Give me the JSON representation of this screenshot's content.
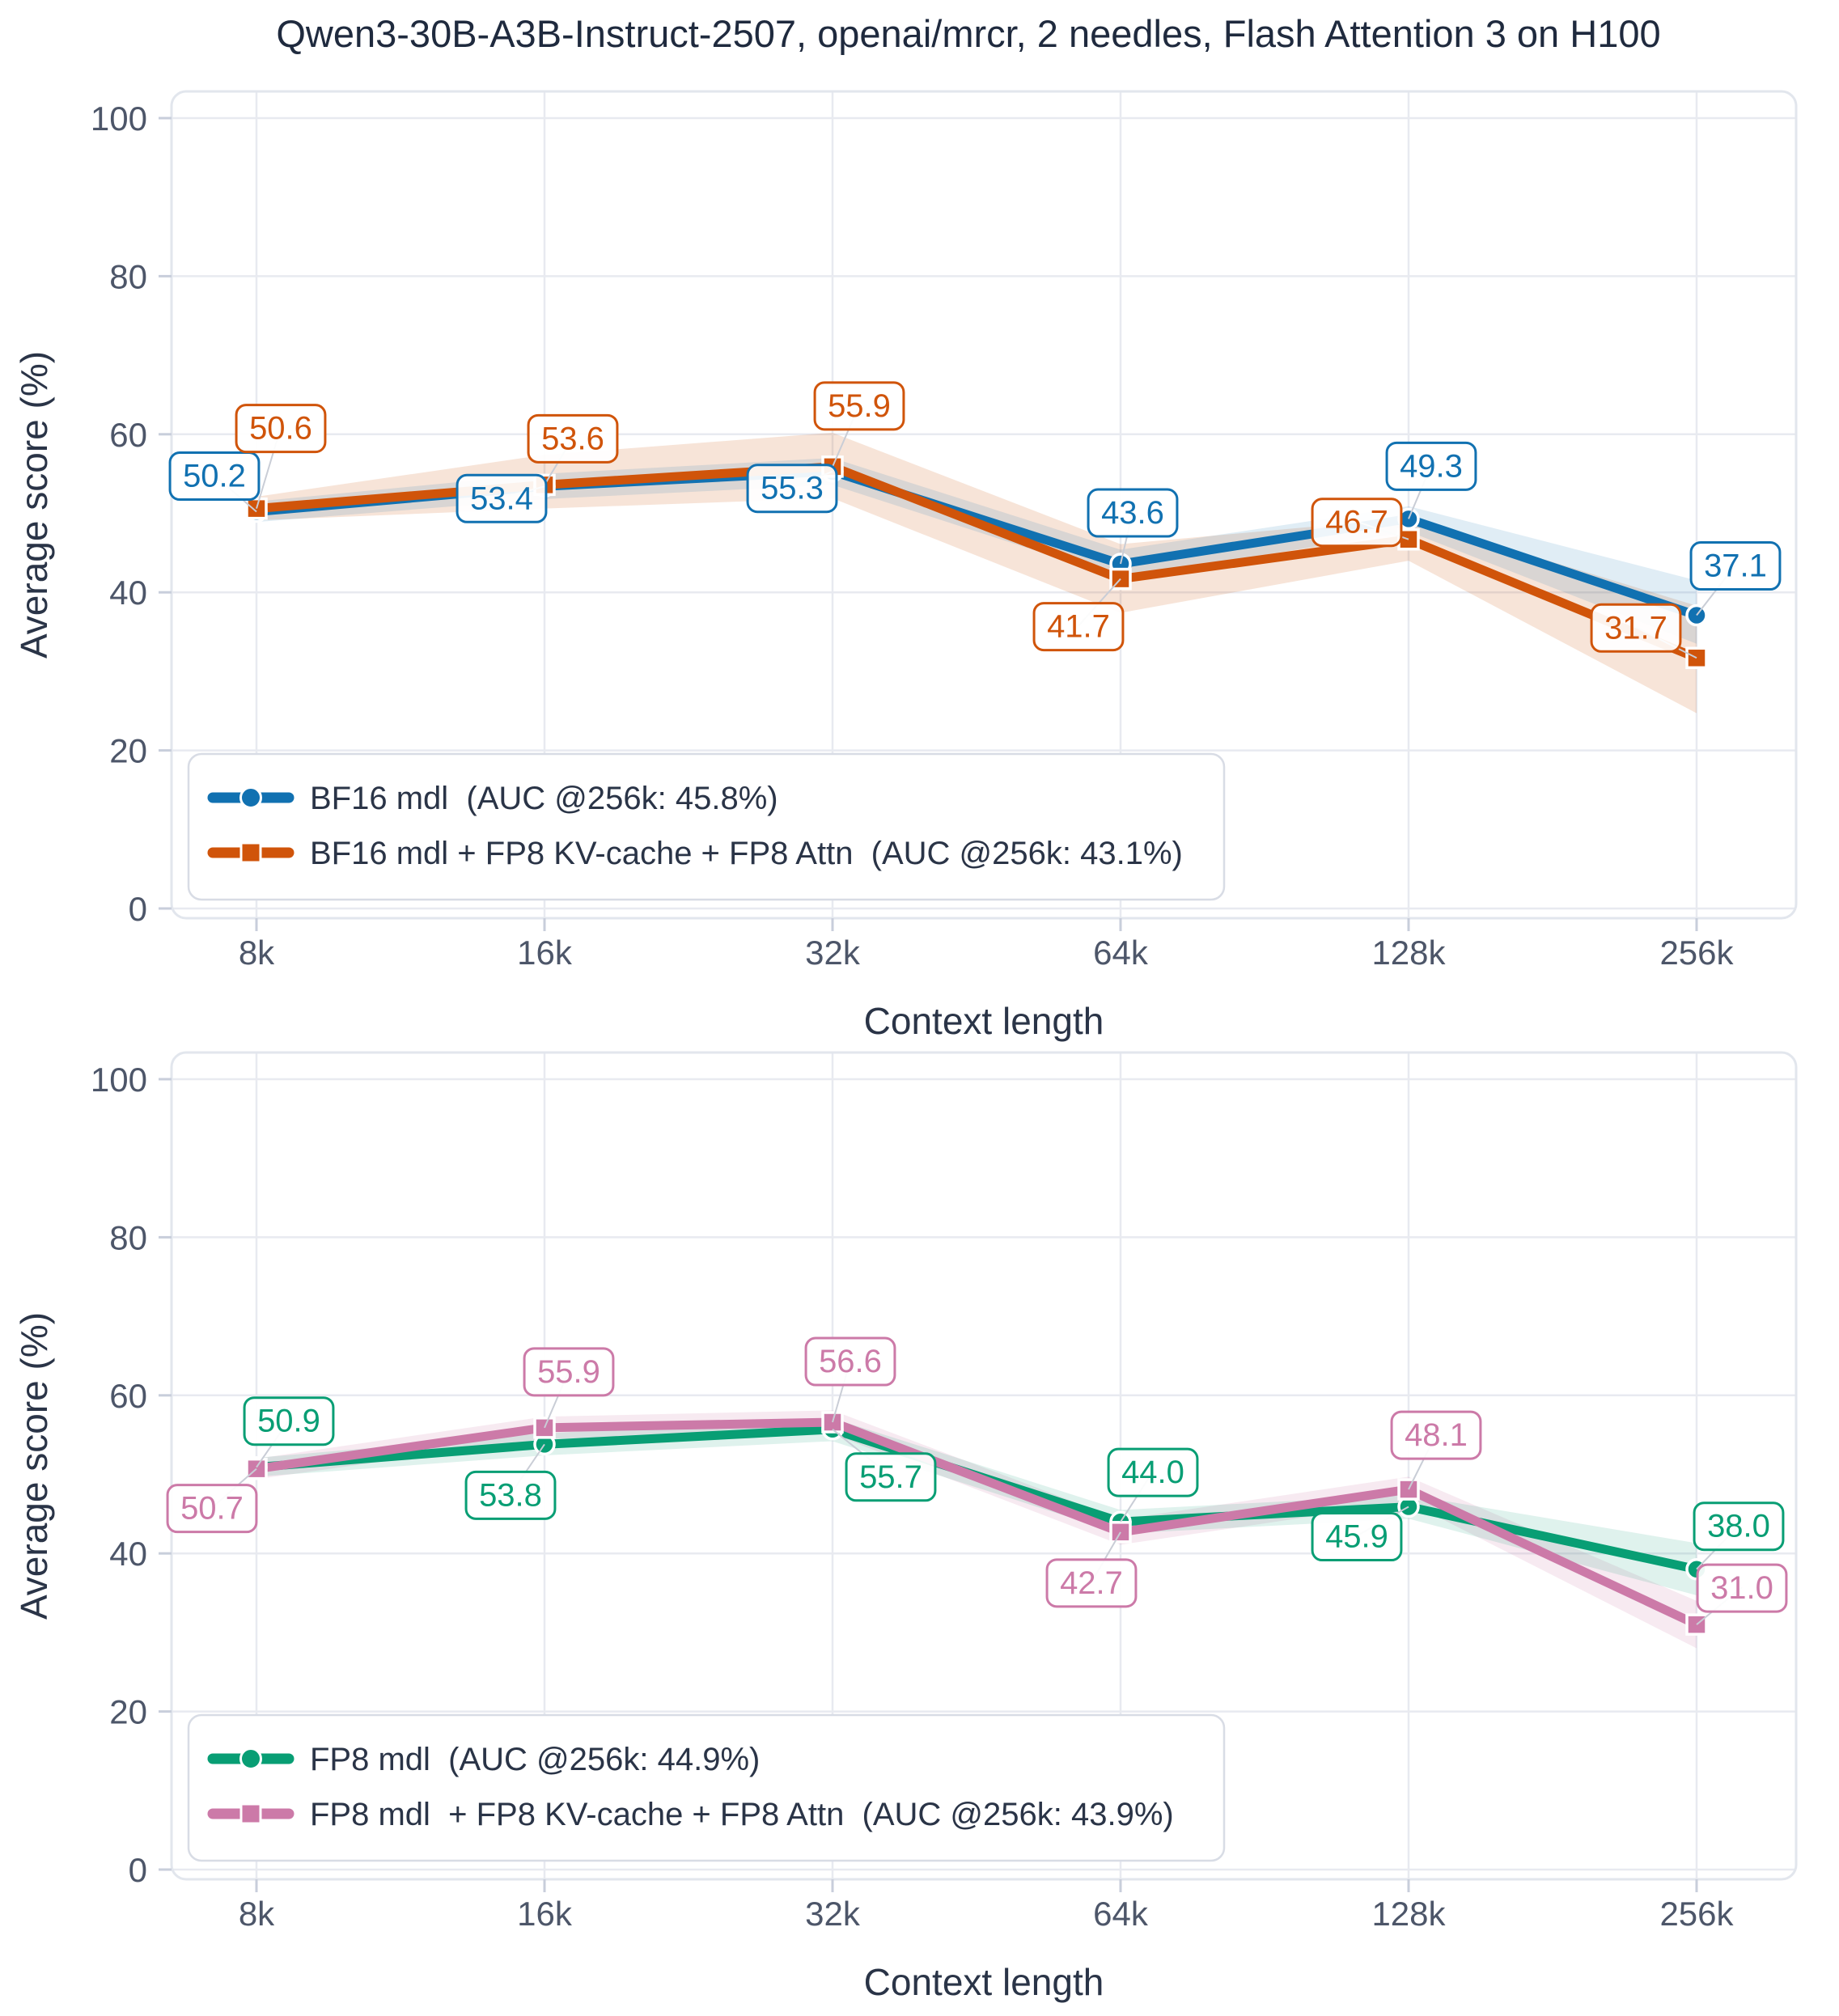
{
  "title": "Qwen3-30B-A3B-Instruct-2507, openai/mrcr, 2 needles, Flash Attention 3 on H100",
  "colors": {
    "blue": "#1171b1",
    "orange": "#d0540a",
    "green": "#089e74",
    "pink": "#cc7aa8",
    "grid": "#e8eaf0",
    "plot_border": "#e2e6ed",
    "tick": "#c8cedb",
    "tick_label": "#4d5669",
    "title_text": "#1f2a3e",
    "axis_text": "#2a3447",
    "legend_border": "#d8dce5",
    "leader": "#c9cdd6",
    "label_box_bg": "#ffffff"
  },
  "chart_data": [
    {
      "type": "line",
      "xlabel": "Context length",
      "ylabel": "Average score (%)",
      "categories": [
        "8k",
        "16k",
        "32k",
        "64k",
        "128k",
        "256k"
      ],
      "ylim": [
        0,
        100
      ],
      "yticks": [
        0,
        20,
        40,
        60,
        80,
        100
      ],
      "grid": true,
      "legend_position": "lower left",
      "series": [
        {
          "name": "BF16 mdl  (AUC @256k: 45.8%)",
          "color_key": "blue",
          "marker": "circle",
          "values": [
            50.2,
            53.4,
            55.3,
            43.6,
            49.3,
            37.1
          ],
          "band_lower": [
            48.9,
            51.8,
            53.6,
            41.8,
            47.7,
            33.5
          ],
          "band_upper": [
            51.5,
            55.0,
            57.0,
            45.4,
            50.9,
            41.5
          ]
        },
        {
          "name": "BF16 mdl + FP8 KV-cache + FP8 Attn  (AUC @256k: 43.1%)",
          "color_key": "orange",
          "marker": "square",
          "values": [
            50.6,
            53.6,
            55.9,
            41.7,
            46.7,
            31.7
          ],
          "band_lower": [
            49.1,
            50.6,
            51.9,
            37.4,
            44.0,
            24.7
          ],
          "band_upper": [
            52.1,
            57.4,
            60.2,
            46.1,
            49.4,
            38.3
          ]
        }
      ]
    },
    {
      "type": "line",
      "xlabel": "Context length",
      "ylabel": "Average score (%)",
      "categories": [
        "8k",
        "16k",
        "32k",
        "64k",
        "128k",
        "256k"
      ],
      "ylim": [
        0,
        100
      ],
      "yticks": [
        0,
        20,
        40,
        60,
        80,
        100
      ],
      "grid": true,
      "legend_position": "lower left",
      "series": [
        {
          "name": "FP8 mdl  (AUC @256k: 44.9%)",
          "color_key": "green",
          "marker": "circle",
          "values": [
            50.9,
            53.8,
            55.7,
            44.0,
            45.9,
            38.0
          ],
          "band_lower": [
            49.7,
            52.4,
            54.2,
            42.5,
            44.4,
            34.7
          ],
          "band_upper": [
            52.1,
            55.2,
            57.1,
            45.5,
            47.4,
            41.3
          ]
        },
        {
          "name": "FP8 mdl  + FP8 KV-cache + FP8 Attn  (AUC @256k: 43.9%)",
          "color_key": "pink",
          "marker": "square",
          "values": [
            50.7,
            55.9,
            56.6,
            42.7,
            48.1,
            31.0
          ],
          "band_lower": [
            49.4,
            54.5,
            55.1,
            41.1,
            46.5,
            28.0
          ],
          "band_upper": [
            52.0,
            57.3,
            58.1,
            44.3,
            49.7,
            34.0
          ]
        }
      ]
    }
  ]
}
